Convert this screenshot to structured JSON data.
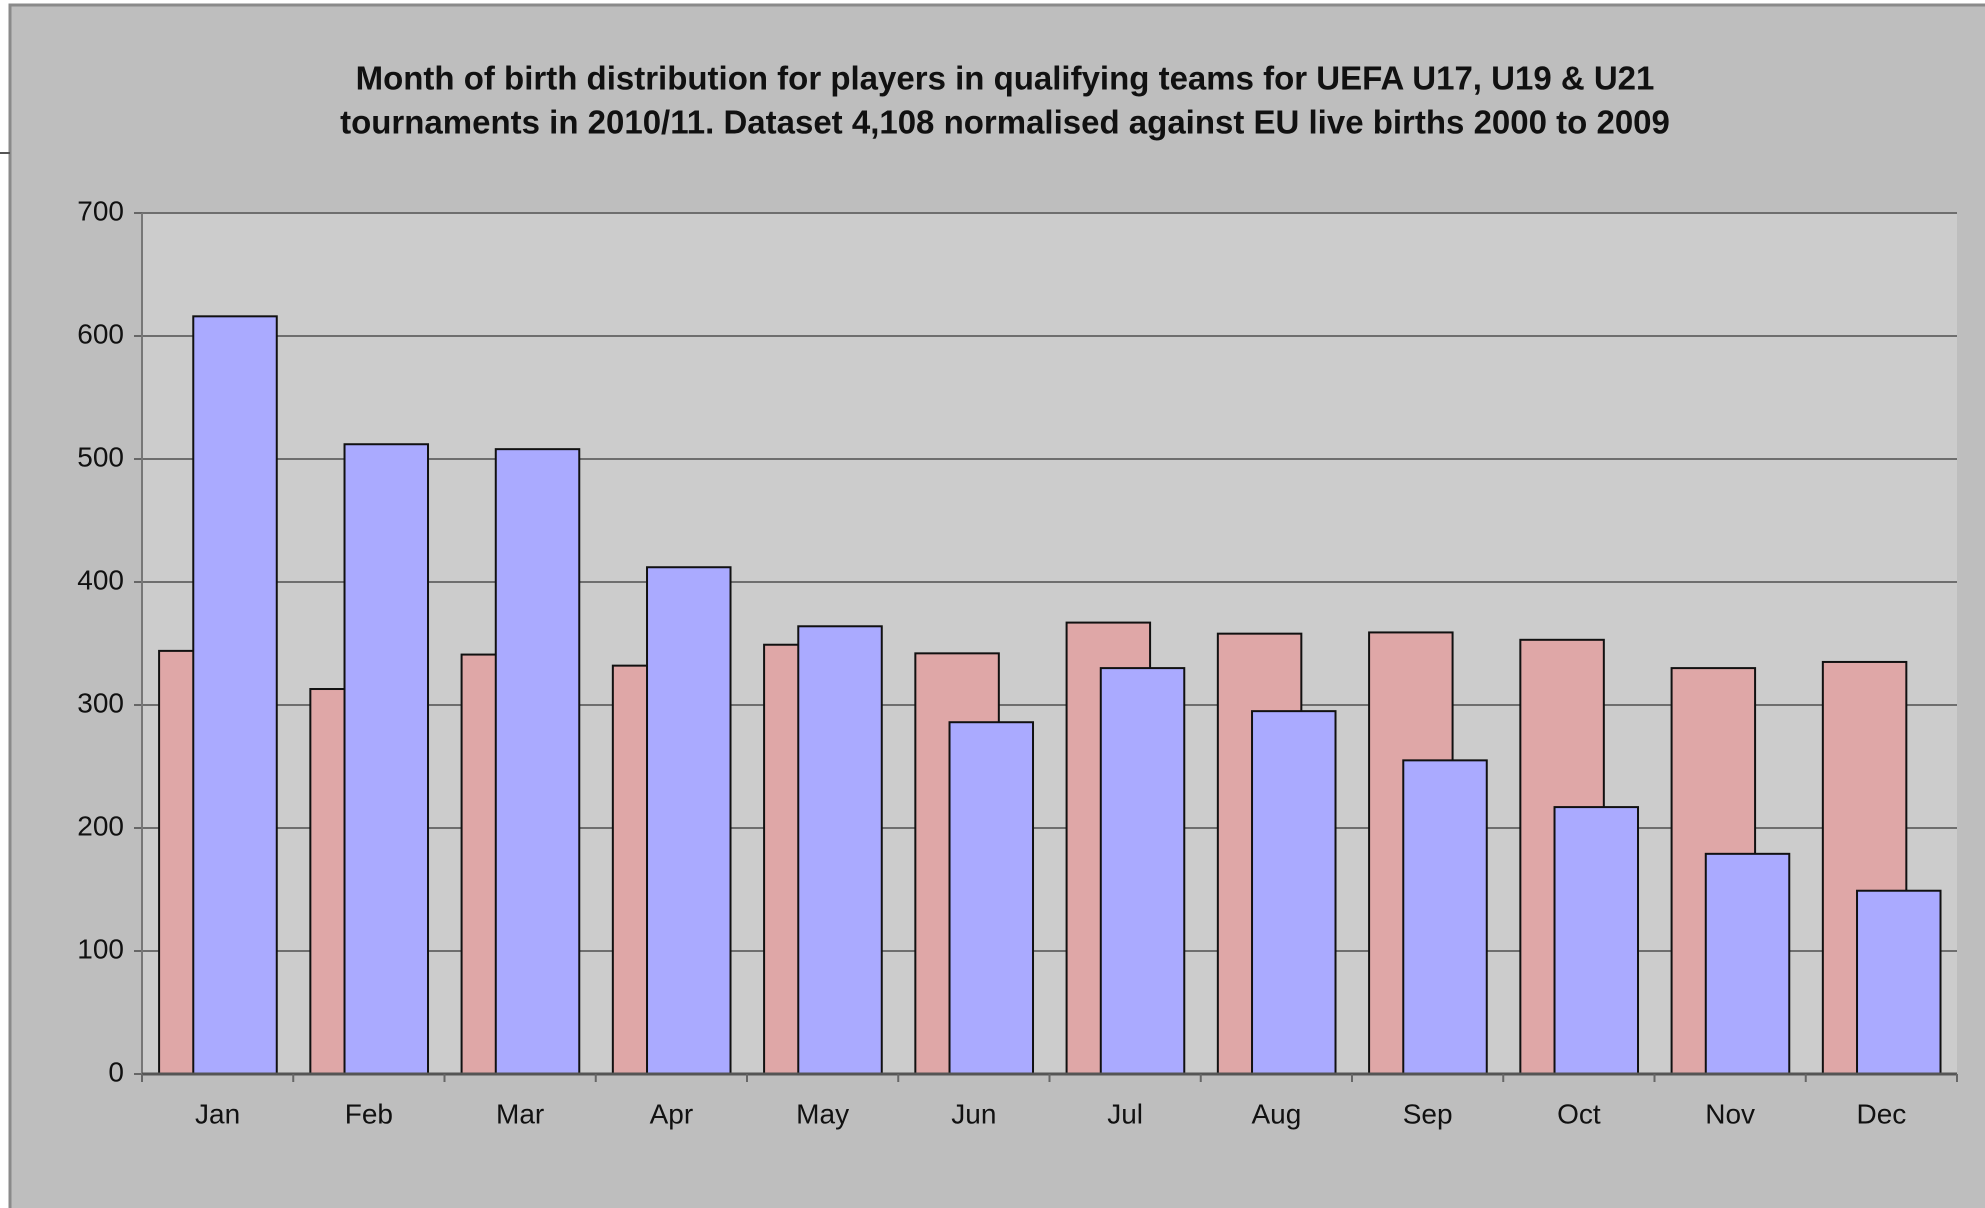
{
  "chart_data": {
    "type": "bar",
    "title": [
      "Month of birth distribution for players in qualifying teams for UEFA U17, U19 & U21",
      "tournaments in 2010/11. Dataset 4,108 normalised against EU live births 2000 to 2009"
    ],
    "categories": [
      "Jan",
      "Feb",
      "Mar",
      "Apr",
      "May",
      "Jun",
      "Jul",
      "Aug",
      "Sep",
      "Oct",
      "Nov",
      "Dec"
    ],
    "series": [
      {
        "color": "#dfa7a7",
        "values": [
          344,
          313,
          341,
          332,
          349,
          342,
          367,
          358,
          359,
          353,
          330,
          335
        ]
      },
      {
        "color": "#aaaaff",
        "values": [
          616,
          512,
          508,
          412,
          364,
          286,
          330,
          295,
          255,
          217,
          179,
          149
        ]
      }
    ],
    "ylim": [
      0,
      700
    ],
    "yticks": [
      0,
      100,
      200,
      300,
      400,
      500,
      600,
      700
    ],
    "grid": true
  }
}
